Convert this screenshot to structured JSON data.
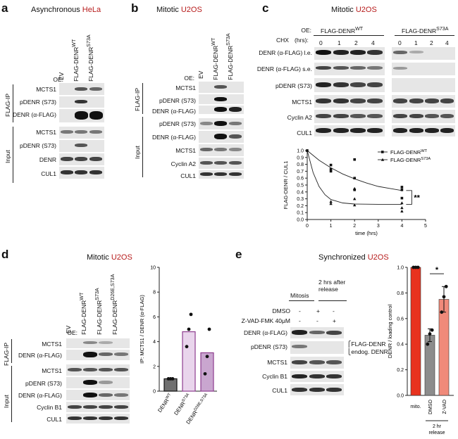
{
  "panels": [
    {
      "letter": "a",
      "title_pre": "Asynchronous ",
      "title_hl": "HeLa"
    },
    {
      "letter": "b",
      "title_pre": "Mitotic ",
      "title_hl": "U2OS"
    },
    {
      "letter": "c",
      "title_pre": "Mitotic ",
      "title_hl": "U2OS"
    },
    {
      "letter": "d",
      "title_pre": "Mitotic ",
      "title_hl": "U2OS"
    },
    {
      "letter": "e",
      "title_pre": "Synchronized ",
      "title_hl": "U2OS"
    }
  ],
  "common": {
    "oe": "OE:",
    "flag_ip": "FLAG-IP",
    "input": "Input",
    "ev": "EV"
  },
  "a": {
    "lanes": [
      "EV",
      "FLAG-DENR",
      "FLAG-DENR"
    ],
    "lane_sups": [
      "",
      "WT",
      "S73A"
    ],
    "ip_rows": [
      "MCTS1",
      "pDENR (S73)",
      "DENR (α-FLAG)"
    ],
    "input_rows": [
      "MCTS1",
      "pDENR (S73)",
      "DENR",
      "CUL1"
    ]
  },
  "b": {
    "lanes": [
      "EV",
      "FLAG-DENR",
      "FLAG-DENR"
    ],
    "lane_sups": [
      "",
      "WT",
      "S73A"
    ],
    "ip_rows": [
      "MCTS1",
      "pDENR (S73)",
      "DENR (α-FLAG)"
    ],
    "input_rows": [
      "pDENR (S73)",
      "DENR (α-FLAG)",
      "MCTS1",
      "Cyclin A2",
      "CUL1"
    ]
  },
  "c": {
    "group_wt": "FLAG-DENR",
    "group_wt_sup": "WT",
    "group_s73a": "FLAG-DENR",
    "group_s73a_sup": "S73A",
    "chx": "CHX",
    "hrs": "(hrs):",
    "times": [
      "0",
      "1",
      "2",
      "4",
      "0",
      "1",
      "2",
      "4"
    ],
    "rows": [
      "DENR (α-FLAG) l.e.",
      "DENR (α-FLAG) s.e.",
      "pDENR (S73)",
      "MCTS1",
      "Cyclin A2",
      "CUL1"
    ]
  },
  "chart_data": [
    {
      "type": "scatter",
      "panel": "c",
      "ylabel": "FLAG-DENR / CUL1",
      "xlabel": "time (hrs)",
      "xlim": [
        0,
        5
      ],
      "ylim": [
        0,
        1.0
      ],
      "xticks": [
        "0",
        "1",
        "2",
        "3",
        "4",
        "5"
      ],
      "yticks": [
        "0.0",
        "0.1",
        "0.2",
        "0.3",
        "0.4",
        "0.5",
        "0.6",
        "0.7",
        "0.8",
        "0.9",
        "1.0"
      ],
      "legend_position": "top-right",
      "significance": "**",
      "series": [
        {
          "name": "FLAG-DENR",
          "name_sup": "WT",
          "marker": "square",
          "points": [
            [
              0,
              1.0
            ],
            [
              1,
              0.79
            ],
            [
              1,
              0.73
            ],
            [
              1,
              0.7
            ],
            [
              2,
              0.87
            ],
            [
              2,
              0.6
            ],
            [
              2,
              0.43
            ],
            [
              4,
              0.47
            ],
            [
              4,
              0.43
            ],
            [
              4,
              0.31
            ]
          ],
          "fit": [
            [
              0,
              1.0
            ],
            [
              0.5,
              0.86
            ],
            [
              1,
              0.75
            ],
            [
              1.5,
              0.66
            ],
            [
              2,
              0.59
            ],
            [
              2.5,
              0.53
            ],
            [
              3,
              0.48
            ],
            [
              3.5,
              0.45
            ],
            [
              4,
              0.42
            ]
          ]
        },
        {
          "name": "FLAG-DENR",
          "name_sup": "S73A",
          "marker": "triangle",
          "points": [
            [
              0,
              1.0
            ],
            [
              1,
              0.26
            ],
            [
              1,
              0.23
            ],
            [
              2,
              0.45
            ],
            [
              2,
              0.3
            ],
            [
              2,
              0.21
            ],
            [
              4,
              0.24
            ],
            [
              4,
              0.17
            ],
            [
              4,
              0.12
            ]
          ],
          "fit": [
            [
              0,
              1.0
            ],
            [
              0.25,
              0.68
            ],
            [
              0.5,
              0.48
            ],
            [
              0.75,
              0.36
            ],
            [
              1,
              0.29
            ],
            [
              1.5,
              0.24
            ],
            [
              2,
              0.225
            ],
            [
              3,
              0.22
            ],
            [
              4,
              0.22
            ]
          ]
        }
      ]
    },
    {
      "type": "bar",
      "panel": "d",
      "ylabel": "IP: MCTS1 / DENR (α-FLAG)",
      "categories": [
        "DENR",
        "DENR",
        "DENR"
      ],
      "category_sups": [
        "WT",
        "S73A",
        "D26E,S73A"
      ],
      "values": [
        1.0,
        4.8,
        3.1
      ],
      "points": [
        [
          1.0,
          1.0,
          1.0
        ],
        [
          3.6,
          5.0,
          6.2
        ],
        [
          1.4,
          2.8,
          5.0
        ]
      ],
      "ylim": [
        0,
        10
      ],
      "yticks": [
        "0",
        "2",
        "4",
        "6",
        "8",
        "10"
      ]
    },
    {
      "type": "bar",
      "panel": "e",
      "ylabel": "DENR / loading control",
      "categories": [
        "mito.",
        "DMSO",
        "Z-VAD"
      ],
      "group_label": "2 hr release",
      "values": [
        1.0,
        0.47,
        0.75
      ],
      "errors": [
        0,
        0.05,
        0.1
      ],
      "points": [
        [
          1.0,
          1.0,
          1.0
        ],
        [
          0.4,
          0.48,
          0.51
        ],
        [
          0.65,
          0.77,
          0.85
        ]
      ],
      "ylim": [
        0,
        1.0
      ],
      "yticks": [
        "0.0",
        "0.2",
        "0.4",
        "0.6",
        "0.8",
        "1.0"
      ],
      "significance": "*",
      "colors": [
        "#e8321e",
        "#8c8c8c",
        "#f08a7a"
      ]
    }
  ],
  "d": {
    "lanes": [
      "EV",
      "FLAG-DENR",
      "FLAG-DENR",
      "FLAG-DENR"
    ],
    "lane_sups": [
      "",
      "WT",
      "S73A",
      "D26E,S73A"
    ],
    "ip_rows": [
      "MCTS1",
      "DENR (α-FLAG)"
    ],
    "input_rows": [
      "MCTS1",
      "pDENR (S73)",
      "DENR (α-FLAG)",
      "Cyclin B1",
      "CUL1"
    ]
  },
  "e": {
    "mitosis": "Mitosis",
    "release": "2 hrs after release",
    "dmso": "DMSO",
    "zvad": "Z-VAD-FMK 40μM",
    "signs_dmso": [
      "-",
      "+",
      "-"
    ],
    "signs_zvad": [
      "-",
      "-",
      "+"
    ],
    "rows": [
      "DENR (α-FLAG)",
      "pDENR (S73)",
      "MCTS1",
      "Cyclin B1",
      "CUL1"
    ],
    "flag_denr": "FLAG-DENR",
    "endog_denr": "endog. DENR"
  }
}
